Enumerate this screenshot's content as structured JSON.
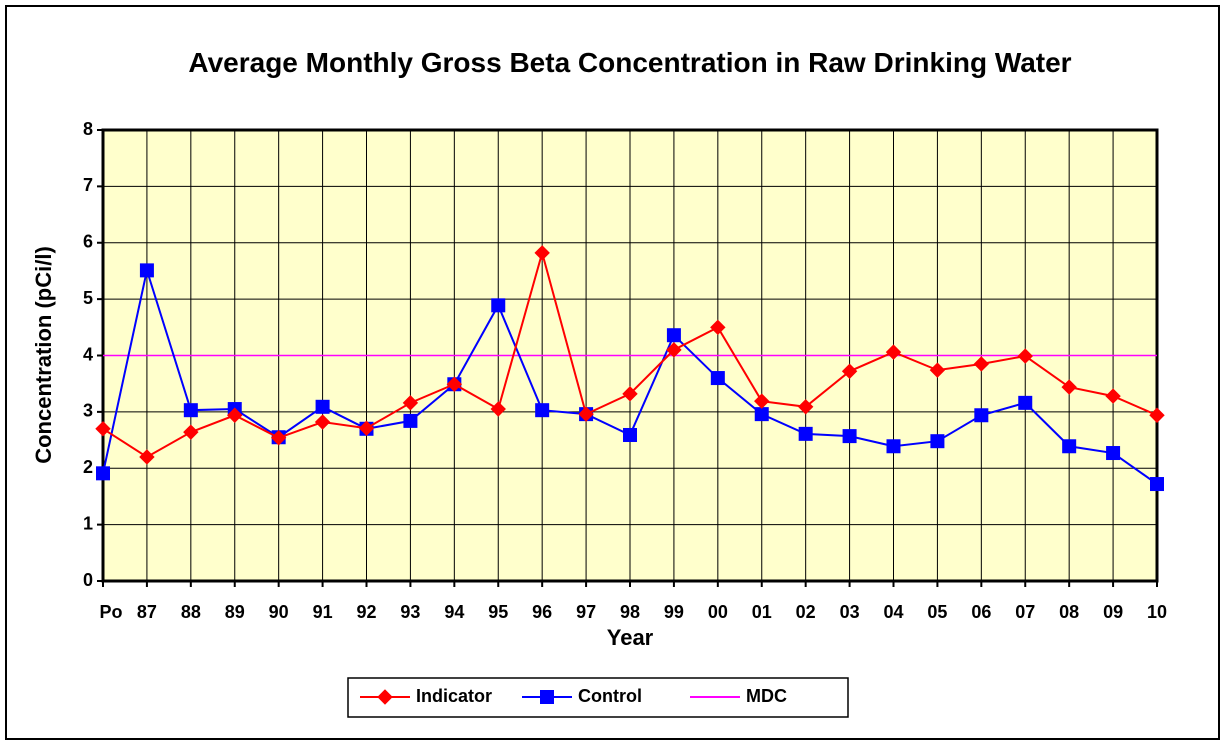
{
  "chart_data": {
    "type": "line",
    "title": "Average Monthly Gross Beta Concentration in Raw Drinking Water",
    "x_label": "Year",
    "y_label": "Concentration (pCi/l)",
    "categories": [
      "Po",
      "87",
      "88",
      "89",
      "90",
      "91",
      "92",
      "93",
      "94",
      "95",
      "96",
      "97",
      "98",
      "99",
      "00",
      "01",
      "02",
      "03",
      "04",
      "05",
      "06",
      "07",
      "08",
      "09",
      "10"
    ],
    "series": [
      {
        "name": "Indicator",
        "color": "#ff0000",
        "marker": "diamond",
        "values": [
          2.7,
          2.2,
          2.64,
          2.94,
          2.54,
          2.82,
          2.71,
          3.16,
          3.49,
          3.05,
          5.82,
          2.96,
          3.32,
          4.1,
          4.5,
          3.19,
          3.09,
          3.72,
          4.06,
          3.74,
          3.85,
          3.99,
          3.44,
          3.28,
          2.94
        ]
      },
      {
        "name": "Control",
        "color": "#0000ff",
        "marker": "square",
        "values": [
          1.91,
          5.51,
          3.03,
          3.05,
          2.55,
          3.09,
          2.7,
          2.84,
          3.49,
          4.89,
          3.03,
          2.96,
          2.59,
          4.36,
          3.6,
          2.96,
          2.61,
          2.57,
          2.39,
          2.48,
          2.94,
          3.16,
          2.39,
          2.27,
          1.72
        ]
      },
      {
        "name": "MDC",
        "color": "#ff00ff",
        "marker": "none",
        "values": [
          4,
          4,
          4,
          4,
          4,
          4,
          4,
          4,
          4,
          4,
          4,
          4,
          4,
          4,
          4,
          4,
          4,
          4,
          4,
          4,
          4,
          4,
          4,
          4,
          4
        ]
      }
    ],
    "ylim": [
      0,
      8
    ],
    "yticks": [
      0,
      1,
      2,
      3,
      4,
      5,
      6,
      7,
      8
    ],
    "grid": true,
    "plot_background": "#ffffcc",
    "legend": "bottom"
  }
}
